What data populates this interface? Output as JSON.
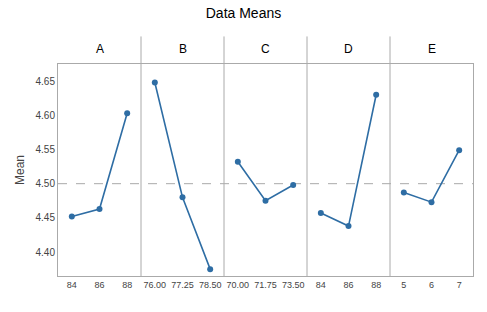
{
  "chart_data": {
    "type": "line",
    "title": "Data Means",
    "y_label": "Mean",
    "categories": [
      "84",
      "86",
      "88",
      "76.00",
      "77.25",
      "78.50",
      "70.00",
      "71.75",
      "73.50",
      "84",
      "86",
      "88",
      "5",
      "6",
      "7"
    ],
    "series": [
      {
        "name": "A",
        "color": "#2E6DA4",
        "values": [
          4.452,
          4.463,
          4.603,
          null,
          null,
          null,
          null,
          null,
          null,
          null,
          null,
          null,
          null,
          null,
          null
        ]
      },
      {
        "name": "B",
        "color": "#2E6DA4",
        "values": [
          null,
          null,
          null,
          4.648,
          4.48,
          4.375,
          null,
          null,
          null,
          null,
          null,
          null,
          null,
          null,
          null
        ]
      },
      {
        "name": "C",
        "color": "#2E6DA4",
        "values": [
          null,
          null,
          null,
          null,
          null,
          null,
          4.532,
          4.475,
          4.498,
          null,
          null,
          null,
          null,
          null,
          null
        ]
      },
      {
        "name": "D",
        "color": "#2E6DA4",
        "values": [
          null,
          null,
          null,
          null,
          null,
          null,
          null,
          null,
          null,
          4.457,
          4.438,
          4.63,
          null,
          null,
          null
        ]
      },
      {
        "name": "E",
        "color": "#2E6DA4",
        "values": [
          null,
          null,
          null,
          null,
          null,
          null,
          null,
          null,
          null,
          null,
          null,
          null,
          4.487,
          4.473,
          4.549
        ]
      }
    ],
    "marker": "circle",
    "reference_line": 4.5,
    "ylim": [
      4.365,
      4.675
    ],
    "yticks": [
      {
        "value": 4.4,
        "label": "4.40"
      },
      4.45,
      {
        "value": 4.5,
        "label": "4.50"
      },
      4.55,
      {
        "value": 4.6,
        "label": "4.60"
      },
      4.65
    ],
    "grid": false
  }
}
